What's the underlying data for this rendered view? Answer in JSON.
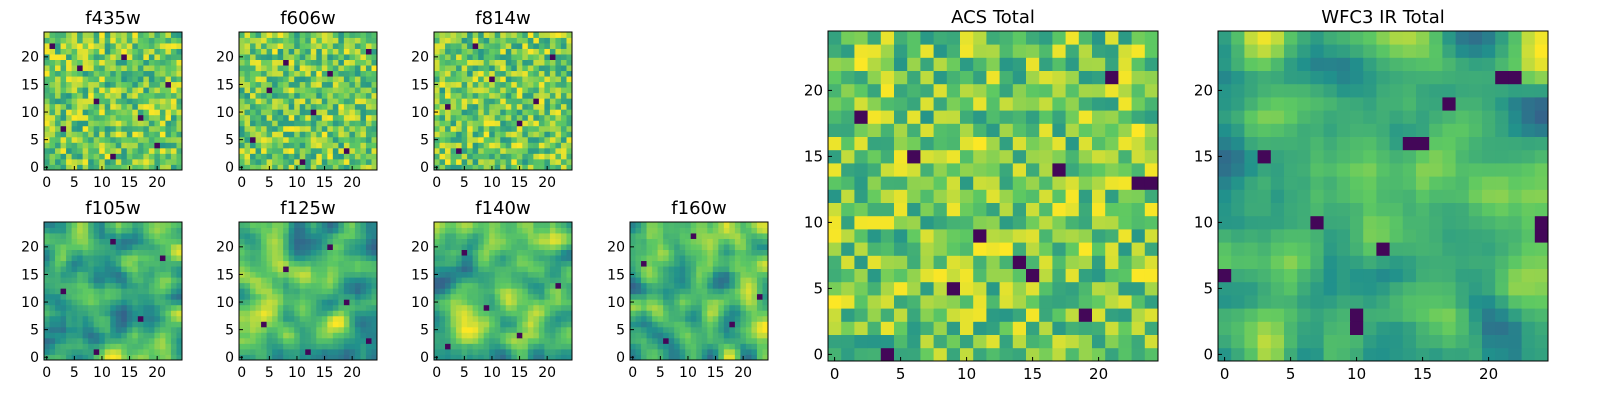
{
  "chart_data": [
    {
      "type": "heatmap",
      "title": "f435w",
      "grid_size": 25,
      "colormap": "viridis",
      "x_ticks": [
        0,
        5,
        10,
        15,
        20
      ],
      "y_ticks": [
        0,
        5,
        10,
        15,
        20
      ],
      "xlim": [
        0,
        24
      ],
      "ylim": [
        0,
        24
      ],
      "texture": "noisy",
      "seed": 11,
      "dark_cells": [
        [
          3,
          7
        ],
        [
          9,
          12
        ],
        [
          14,
          20
        ],
        [
          20,
          4
        ],
        [
          6,
          18
        ],
        [
          17,
          9
        ],
        [
          22,
          15
        ],
        [
          12,
          2
        ],
        [
          1,
          22
        ]
      ]
    },
    {
      "type": "heatmap",
      "title": "f606w",
      "grid_size": 25,
      "colormap": "viridis",
      "x_ticks": [
        0,
        5,
        10,
        15,
        20
      ],
      "y_ticks": [
        0,
        5,
        10,
        15,
        20
      ],
      "xlim": [
        0,
        24
      ],
      "ylim": [
        0,
        24
      ],
      "texture": "noisy",
      "seed": 23,
      "dark_cells": [
        [
          2,
          5
        ],
        [
          8,
          19
        ],
        [
          13,
          10
        ],
        [
          19,
          3
        ],
        [
          23,
          21
        ],
        [
          5,
          14
        ],
        [
          16,
          17
        ],
        [
          11,
          1
        ]
      ]
    },
    {
      "type": "heatmap",
      "title": "f814w",
      "grid_size": 25,
      "colormap": "viridis",
      "x_ticks": [
        0,
        5,
        10,
        15,
        20
      ],
      "y_ticks": [
        0,
        5,
        10,
        15,
        20
      ],
      "xlim": [
        0,
        24
      ],
      "ylim": [
        0,
        24
      ],
      "texture": "noisy",
      "seed": 37,
      "dark_cells": [
        [
          4,
          3
        ],
        [
          10,
          16
        ],
        [
          15,
          8
        ],
        [
          21,
          20
        ],
        [
          7,
          22
        ],
        [
          18,
          12
        ],
        [
          2,
          11
        ]
      ]
    },
    {
      "type": "heatmap",
      "title": "f105w",
      "grid_size": 25,
      "colormap": "viridis",
      "x_ticks": [
        0,
        5,
        10,
        15,
        20
      ],
      "y_ticks": [
        0,
        5,
        10,
        15,
        20
      ],
      "xlim": [
        0,
        24
      ],
      "ylim": [
        0,
        24
      ],
      "texture": "smooth",
      "seed": 41,
      "dark_cells": [
        [
          9,
          1
        ],
        [
          3,
          12
        ],
        [
          17,
          7
        ],
        [
          21,
          18
        ],
        [
          12,
          21
        ]
      ]
    },
    {
      "type": "heatmap",
      "title": "f125w",
      "grid_size": 25,
      "colormap": "viridis",
      "x_ticks": [
        0,
        5,
        10,
        15,
        20
      ],
      "y_ticks": [
        0,
        5,
        10,
        15,
        20
      ],
      "xlim": [
        0,
        24
      ],
      "ylim": [
        0,
        24
      ],
      "texture": "smooth",
      "seed": 53,
      "dark_cells": [
        [
          8,
          16
        ],
        [
          16,
          20
        ],
        [
          23,
          3
        ],
        [
          4,
          6
        ],
        [
          19,
          10
        ],
        [
          12,
          1
        ]
      ]
    },
    {
      "type": "heatmap",
      "title": "f140w",
      "grid_size": 25,
      "colormap": "viridis",
      "x_ticks": [
        0,
        5,
        10,
        15,
        20
      ],
      "y_ticks": [
        0,
        5,
        10,
        15,
        20
      ],
      "xlim": [
        0,
        24
      ],
      "ylim": [
        0,
        24
      ],
      "texture": "smooth",
      "seed": 67,
      "dark_cells": [
        [
          5,
          19
        ],
        [
          15,
          4
        ],
        [
          22,
          13
        ],
        [
          9,
          9
        ],
        [
          2,
          2
        ]
      ]
    },
    {
      "type": "heatmap",
      "title": "f160w",
      "grid_size": 25,
      "colormap": "viridis",
      "x_ticks": [
        0,
        5,
        10,
        15,
        20
      ],
      "y_ticks": [
        0,
        5,
        10,
        15,
        20
      ],
      "xlim": [
        0,
        24
      ],
      "ylim": [
        0,
        24
      ],
      "texture": "smooth",
      "seed": 79,
      "dark_cells": [
        [
          2,
          17
        ],
        [
          11,
          22
        ],
        [
          18,
          6
        ],
        [
          23,
          11
        ],
        [
          6,
          3
        ]
      ]
    },
    {
      "type": "heatmap",
      "title": "ACS Total",
      "grid_size": 25,
      "colormap": "viridis",
      "x_ticks": [
        0,
        5,
        10,
        15,
        20
      ],
      "y_ticks": [
        0,
        5,
        10,
        15,
        20
      ],
      "xlim": [
        0,
        24
      ],
      "ylim": [
        0,
        24
      ],
      "texture": "noisy",
      "seed": 97,
      "dark_cells": [
        [
          6,
          15
        ],
        [
          17,
          14
        ],
        [
          23,
          13
        ],
        [
          24,
          13
        ],
        [
          4,
          0
        ],
        [
          19,
          3
        ],
        [
          14,
          7
        ],
        [
          11,
          9
        ],
        [
          2,
          18
        ],
        [
          21,
          21
        ],
        [
          9,
          5
        ],
        [
          15,
          6
        ]
      ]
    },
    {
      "type": "heatmap",
      "title": "WFC3 IR Total",
      "grid_size": 25,
      "colormap": "viridis",
      "x_ticks": [
        0,
        5,
        10,
        15,
        20
      ],
      "y_ticks": [
        0,
        5,
        10,
        15,
        20
      ],
      "xlim": [
        0,
        24
      ],
      "ylim": [
        0,
        24
      ],
      "texture": "smooth",
      "seed": 113,
      "dark_cells": [
        [
          0,
          6
        ],
        [
          10,
          2
        ],
        [
          10,
          3
        ],
        [
          14,
          16
        ],
        [
          15,
          16
        ],
        [
          21,
          21
        ],
        [
          22,
          21
        ],
        [
          24,
          9
        ],
        [
          24,
          10
        ],
        [
          3,
          15
        ],
        [
          17,
          19
        ],
        [
          12,
          8
        ],
        [
          7,
          10
        ]
      ]
    }
  ]
}
